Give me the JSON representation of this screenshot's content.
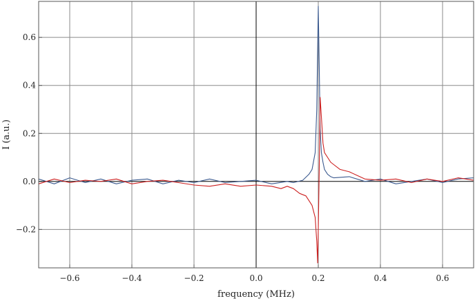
{
  "chart_data": {
    "type": "line",
    "title": "",
    "xlabel": "frequency (MHz)",
    "ylabel": "I (a.u.)",
    "xlim": [
      -0.7,
      0.7
    ],
    "ylim": [
      -0.36,
      0.75
    ],
    "x_ticks": [
      -0.6,
      -0.4,
      -0.2,
      0.0,
      0.2,
      0.4,
      0.6
    ],
    "x_tick_labels": [
      "−0.6",
      "−0.4",
      "−0.2",
      "0.0",
      "0.2",
      "0.4",
      "0.6"
    ],
    "y_ticks": [
      -0.2,
      0.0,
      0.2,
      0.4,
      0.6
    ],
    "y_tick_labels": [
      "−0.2",
      "0.0",
      "0.2",
      "0.4",
      "0.6"
    ],
    "grid": true,
    "legend": "none",
    "colors": {
      "blue": "#3b5a8f",
      "red": "#cc1f1f",
      "grid": "#8a8a8a",
      "frame": "#555555",
      "axis": "#000000"
    },
    "series": [
      {
        "color": "#3b5a8f",
        "x": [
          -0.7,
          -0.65,
          -0.6,
          -0.55,
          -0.5,
          -0.45,
          -0.4,
          -0.35,
          -0.3,
          -0.25,
          -0.2,
          -0.15,
          -0.1,
          -0.05,
          0.0,
          0.05,
          0.1,
          0.12,
          0.15,
          0.17,
          0.18,
          0.19,
          0.195,
          0.2,
          0.203,
          0.206,
          0.21,
          0.215,
          0.22,
          0.23,
          0.24,
          0.25,
          0.3,
          0.35,
          0.4,
          0.45,
          0.5,
          0.55,
          0.6,
          0.65,
          0.7
        ],
        "y": [
          0.01,
          -0.01,
          0.015,
          -0.005,
          0.01,
          -0.01,
          0.005,
          0.01,
          -0.01,
          0.005,
          -0.005,
          0.01,
          -0.005,
          0.0,
          0.005,
          -0.01,
          0.0,
          -0.005,
          0.005,
          0.03,
          0.05,
          0.12,
          0.3,
          0.73,
          0.48,
          0.22,
          0.12,
          0.08,
          0.05,
          0.03,
          0.02,
          0.015,
          0.02,
          0.0,
          0.01,
          -0.01,
          0.0,
          0.01,
          -0.005,
          0.01,
          0.015
        ]
      },
      {
        "color": "#cc1f1f",
        "x": [
          -0.7,
          -0.65,
          -0.6,
          -0.55,
          -0.5,
          -0.45,
          -0.4,
          -0.35,
          -0.3,
          -0.25,
          -0.2,
          -0.15,
          -0.1,
          -0.05,
          0.0,
          0.05,
          0.08,
          0.1,
          0.12,
          0.14,
          0.16,
          0.17,
          0.18,
          0.19,
          0.195,
          0.198,
          0.2,
          0.203,
          0.206,
          0.21,
          0.215,
          0.22,
          0.23,
          0.24,
          0.25,
          0.27,
          0.3,
          0.35,
          0.4,
          0.45,
          0.5,
          0.55,
          0.6,
          0.65,
          0.7
        ],
        "y": [
          -0.01,
          0.01,
          -0.005,
          0.005,
          0.0,
          0.01,
          -0.01,
          0.0,
          0.005,
          -0.005,
          -0.015,
          -0.02,
          -0.01,
          -0.02,
          -0.015,
          -0.02,
          -0.03,
          -0.02,
          -0.03,
          -0.05,
          -0.06,
          -0.08,
          -0.1,
          -0.15,
          -0.25,
          -0.34,
          -0.2,
          0.05,
          0.35,
          0.27,
          0.16,
          0.12,
          0.1,
          0.08,
          0.07,
          0.05,
          0.04,
          0.01,
          0.005,
          0.01,
          -0.005,
          0.01,
          0.0,
          0.015,
          0.005
        ]
      }
    ]
  }
}
